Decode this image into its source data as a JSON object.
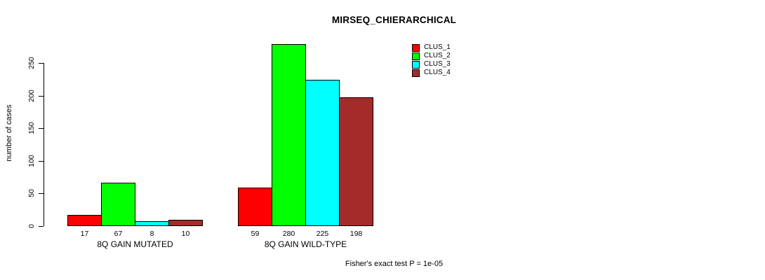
{
  "chart_data": {
    "type": "bar",
    "title": "MIRSEQ_CHIERARCHICAL",
    "ylabel": "number of cases",
    "xlabel": "",
    "ylim": [
      0,
      250
    ],
    "yticks": [
      0,
      50,
      100,
      150,
      200,
      250
    ],
    "categories": [
      "8Q GAIN MUTATED",
      "8Q GAIN WILD-TYPE"
    ],
    "series": [
      {
        "name": "CLUS_1",
        "color": "#ff0000",
        "values": [
          17,
          59
        ]
      },
      {
        "name": "CLUS_2",
        "color": "#00ff00",
        "values": [
          67,
          280
        ]
      },
      {
        "name": "CLUS_3",
        "color": "#00ffff",
        "values": [
          8,
          225
        ]
      },
      {
        "name": "CLUS_4",
        "color": "#a52a2a",
        "values": [
          10,
          198
        ]
      }
    ],
    "bar_value_labels": [
      [
        "17",
        "67",
        "8",
        "10"
      ],
      [
        "59",
        "280",
        "225",
        "198"
      ]
    ],
    "legend_position": "top-right",
    "grid": false,
    "annotation": "Fisher's exact test P = 1e-05",
    "axis_color": "#000000",
    "background_color": "#ffffff"
  }
}
